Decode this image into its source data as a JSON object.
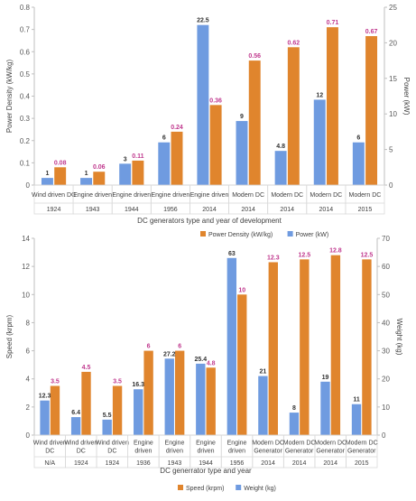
{
  "chart_data": [
    {
      "type": "bar",
      "title": "",
      "xlabel": "DC generators type and year of development",
      "ylabel_left": "Power Density (kW/kg)",
      "ylabel_right": "Power (kW)",
      "ylim_left": [
        0,
        0.8
      ],
      "ylim_right": [
        0,
        25
      ],
      "yticks_left": [
        "0",
        "0.1",
        "0.2",
        "0.3",
        "0.4",
        "0.5",
        "0.6",
        "0.7",
        "0.8"
      ],
      "yticks_right": [
        "0",
        "5",
        "10",
        "15",
        "20",
        "25"
      ],
      "categories": [
        "Wind driven DC",
        "Engine driven",
        "Engine driven",
        "Engine driven",
        "Engine driven",
        "Modern DC",
        "Modern DC",
        "Modern DC",
        "Modern DC"
      ],
      "years": [
        "1924",
        "1943",
        "1944",
        "1956",
        "2014",
        "2014",
        "2014",
        "2014",
        "2015"
      ],
      "grid": false,
      "legend_position": "bottom",
      "series": [
        {
          "name": "Power Density (kW/kg)",
          "axis": "left",
          "color": "#E0852D",
          "values": [
            0.08,
            0.06,
            0.11,
            0.24,
            0.36,
            0.56,
            0.62,
            0.71,
            0.67
          ],
          "labels": [
            "0.08",
            "0.06",
            "0.11",
            "0.24",
            "0.36",
            "0.56",
            "0.62",
            "0.71",
            "0.67"
          ]
        },
        {
          "name": "Power (kW)",
          "axis": "right",
          "color": "#6F9BE0",
          "values": [
            1,
            1,
            3,
            6,
            22.5,
            9,
            4.8,
            12,
            6
          ],
          "labels": [
            "1",
            "1",
            "3",
            "6",
            "22.5",
            "9",
            "4.8",
            "12",
            "6"
          ]
        }
      ]
    },
    {
      "type": "bar",
      "title": "",
      "xlabel": "DC generrator type and year",
      "ylabel_left": "Speed (krpm)",
      "ylabel_right": "Weight (kg)",
      "ylim_left": [
        0,
        14
      ],
      "ylim_right": [
        0,
        70
      ],
      "yticks_left": [
        "0",
        "2",
        "4",
        "6",
        "8",
        "10",
        "12",
        "14"
      ],
      "yticks_right": [
        "0",
        "10",
        "20",
        "30",
        "40",
        "50",
        "60",
        "70"
      ],
      "categories": [
        "Wind driven DC",
        "Wind driven DC",
        "Wind driven DC",
        "Engine driven",
        "Engine driven",
        "Engine driven",
        "Engine driven",
        "Modern DC Generator",
        "Modern DC Generator",
        "Modern DC Generator",
        "Modern DC Generator"
      ],
      "years": [
        "N/A",
        "1924",
        "1924",
        "1936",
        "1943",
        "1944",
        "1956",
        "2014",
        "2014",
        "2014",
        "2015"
      ],
      "grid": false,
      "legend_position": "bottom",
      "series": [
        {
          "name": "Speed (krpm)",
          "axis": "left",
          "color": "#E0852D",
          "values": [
            3.5,
            4.5,
            3.5,
            6,
            6,
            4.8,
            10,
            12.3,
            12.5,
            12.8,
            12.5
          ],
          "labels": [
            "3.5",
            "4.5",
            "3.5",
            "6",
            "6",
            "4.8",
            "10",
            "12.3",
            "12.5",
            "12.8",
            "12.5"
          ]
        },
        {
          "name": "Weight (kg)",
          "axis": "right",
          "color": "#6F9BE0",
          "values": [
            12.3,
            6.4,
            5.5,
            16.3,
            27.2,
            25.4,
            63,
            21,
            8,
            19,
            11
          ],
          "labels": [
            "12.3",
            "6.4",
            "5.5",
            "16.3",
            "27.2",
            "25.4",
            "63",
            "21",
            "8",
            "19",
            "11"
          ]
        }
      ]
    }
  ]
}
